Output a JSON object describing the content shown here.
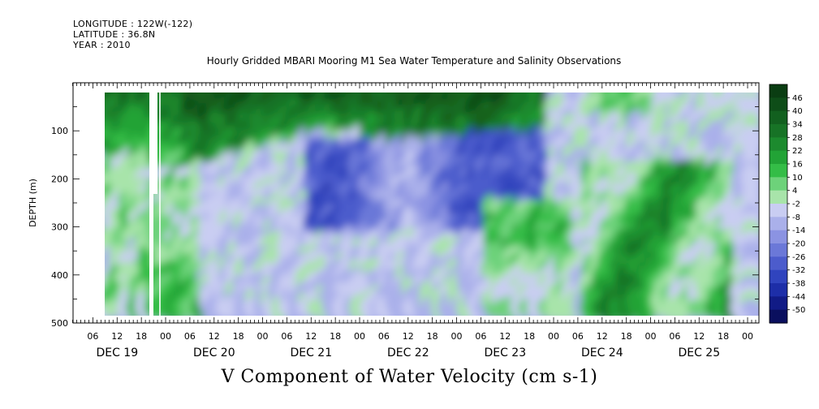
{
  "meta": {
    "longitude": "LONGITUDE : 122W(-122)",
    "latitude": "LATITUDE : 36.8N",
    "year": "YEAR : 2010"
  },
  "title": "Hourly Gridded MBARI Mooring M1 Sea Water Temperature and Salinity Observations",
  "variable_title": "V Component of Water Velocity (cm s-1)",
  "chart_data": {
    "type": "heatmap",
    "title": "Hourly Gridded MBARI Mooring M1 Sea Water Temperature and Salinity Observations",
    "xlabel": "",
    "ylabel": "DEPTH (m)",
    "y_inverted": true,
    "ylim": [
      500,
      0
    ],
    "y_ticks": [
      100,
      200,
      300,
      400,
      500
    ],
    "x_hours_start": "DEC 19 00:00",
    "x_tick_labels": [
      "06",
      "12",
      "18",
      "00",
      "06",
      "12",
      "18",
      "00",
      "06",
      "12",
      "18",
      "00",
      "06",
      "12",
      "18",
      "00",
      "06",
      "12",
      "18",
      "00",
      "06",
      "12",
      "18",
      "00",
      "06",
      "12",
      "18",
      "00"
    ],
    "day_labels": [
      "DEC 19",
      "DEC 20",
      "DEC 21",
      "DEC 22",
      "DEC 23",
      "DEC 24",
      "DEC 25"
    ],
    "colorbar": {
      "levels": [
        46,
        40,
        34,
        28,
        22,
        16,
        10,
        4,
        -2,
        -8,
        -14,
        -20,
        -26,
        -32,
        -38,
        -44,
        -50
      ],
      "colors": [
        "#0a3d12",
        "#0e4d18",
        "#12601f",
        "#177326",
        "#1c8a2e",
        "#22a336",
        "#34bd47",
        "#6dd27a",
        "#a8e4aa",
        "#c9cdf2",
        "#aab0ea",
        "#8b93e2",
        "#6b78d8",
        "#4c5ccc",
        "#3044be",
        "#1d2ea8",
        "#111b86",
        "#0a0f5e"
      ]
    },
    "grid": false,
    "legend": "colorbar right"
  }
}
